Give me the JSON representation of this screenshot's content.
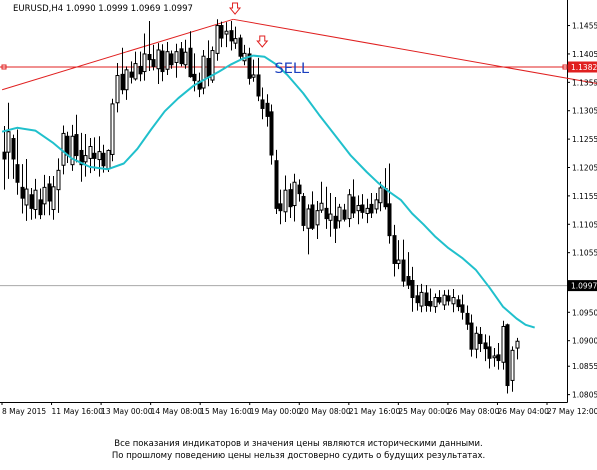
{
  "chart_data": {
    "type": "candlestick",
    "symbol_info": "EURUSD,H4  1.0990 1.0999 1.0969 1.0997",
    "colors": {
      "background": "#ffffff",
      "bull": "#ffffff",
      "bear": "#000000",
      "outline": "#000000",
      "moving_average": "#20c0cc",
      "trendline": "#e02020",
      "price_level": "#e02020",
      "current_price_line": "#a8a8a8",
      "sell_label": "#1a3fbf",
      "arrow": "#e02020"
    },
    "ylim": [
      1.0792,
      1.15
    ],
    "y_ticks": [
      "1.1455",
      "1.1405",
      "1.1355",
      "1.1305",
      "1.1255",
      "1.1205",
      "1.1155",
      "1.1105",
      "1.1055",
      "1.0950",
      "1.0900",
      "1.0855",
      "1.0805"
    ],
    "x_labels": [
      "8 May 2015",
      "11 May 16:00",
      "13 May 00:00",
      "14 May 08:00",
      "15 May 16:00",
      "19 May 00:00",
      "20 May 08:00",
      "21 May 16:00",
      "25 May 00:00",
      "26 May 08:00",
      "26 May 04:00",
      "27 May 12:00"
    ],
    "price_level": {
      "value": 1.1382,
      "label": "1.1382"
    },
    "current_price": {
      "value": 1.0997,
      "label": "1.0997"
    },
    "trendlines": [
      {
        "from_candle": -0.3,
        "from_price": 1.1342,
        "to_candle": 50.6,
        "to_price": 1.1466
      },
      {
        "from_candle": 50.6,
        "from_price": 1.1466,
        "to_candle": 133.5,
        "to_price": 1.1349
      }
    ],
    "sell_label": "SELL",
    "signal_arrows": [
      {
        "candle": 51,
        "price": 1.1477
      },
      {
        "candle": 57,
        "price": 1.1419
      }
    ],
    "candles": [
      {
        "o": 1.1232,
        "h": 1.1278,
        "l": 1.1166,
        "c": 1.122
      },
      {
        "o": 1.1232,
        "h": 1.1319,
        "l": 1.1185,
        "c": 1.1268
      },
      {
        "o": 1.1256,
        "h": 1.1263,
        "l": 1.1185,
        "c": 1.122
      },
      {
        "o": 1.121,
        "h": 1.1272,
        "l": 1.1157,
        "c": 1.1179
      },
      {
        "o": 1.117,
        "h": 1.1211,
        "l": 1.1124,
        "c": 1.1151
      },
      {
        "o": 1.1139,
        "h": 1.122,
        "l": 1.1111,
        "c": 1.1167
      },
      {
        "o": 1.1157,
        "h": 1.1169,
        "l": 1.1113,
        "c": 1.1133
      },
      {
        "o": 1.1131,
        "h": 1.1185,
        "l": 1.1115,
        "c": 1.1165
      },
      {
        "o": 1.1148,
        "h": 1.1168,
        "l": 1.1114,
        "c": 1.1122
      },
      {
        "o": 1.1141,
        "h": 1.1192,
        "l": 1.1121,
        "c": 1.117
      },
      {
        "o": 1.1176,
        "h": 1.119,
        "l": 1.1121,
        "c": 1.1146
      },
      {
        "o": 1.1131,
        "h": 1.119,
        "l": 1.1113,
        "c": 1.1171
      },
      {
        "o": 1.1166,
        "h": 1.1221,
        "l": 1.1125,
        "c": 1.12
      },
      {
        "o": 1.1209,
        "h": 1.1279,
        "l": 1.1193,
        "c": 1.1265
      },
      {
        "o": 1.126,
        "h": 1.1268,
        "l": 1.1213,
        "c": 1.1227
      },
      {
        "o": 1.121,
        "h": 1.128,
        "l": 1.1199,
        "c": 1.126
      },
      {
        "o": 1.1263,
        "h": 1.1298,
        "l": 1.1214,
        "c": 1.1226
      },
      {
        "o": 1.1235,
        "h": 1.1266,
        "l": 1.118,
        "c": 1.121
      },
      {
        "o": 1.1215,
        "h": 1.1264,
        "l": 1.1189,
        "c": 1.1226
      },
      {
        "o": 1.1221,
        "h": 1.1257,
        "l": 1.1195,
        "c": 1.1242
      },
      {
        "o": 1.123,
        "h": 1.1258,
        "l": 1.1199,
        "c": 1.1221
      },
      {
        "o": 1.1219,
        "h": 1.126,
        "l": 1.1189,
        "c": 1.1233
      },
      {
        "o": 1.123,
        "h": 1.1245,
        "l": 1.1196,
        "c": 1.1208
      },
      {
        "o": 1.1203,
        "h": 1.1237,
        "l": 1.1197,
        "c": 1.1235
      },
      {
        "o": 1.1228,
        "h": 1.1326,
        "l": 1.1216,
        "c": 1.1317
      },
      {
        "o": 1.1319,
        "h": 1.1389,
        "l": 1.1302,
        "c": 1.1367
      },
      {
        "o": 1.1369,
        "h": 1.1416,
        "l": 1.1334,
        "c": 1.1342
      },
      {
        "o": 1.1342,
        "h": 1.1383,
        "l": 1.1324,
        "c": 1.1377
      },
      {
        "o": 1.1373,
        "h": 1.1392,
        "l": 1.1353,
        "c": 1.1364
      },
      {
        "o": 1.1361,
        "h": 1.1409,
        "l": 1.1358,
        "c": 1.1388
      },
      {
        "o": 1.1383,
        "h": 1.1409,
        "l": 1.1357,
        "c": 1.137
      },
      {
        "o": 1.1374,
        "h": 1.1441,
        "l": 1.1358,
        "c": 1.1405
      },
      {
        "o": 1.1404,
        "h": 1.1463,
        "l": 1.1375,
        "c": 1.1395
      },
      {
        "o": 1.1395,
        "h": 1.1421,
        "l": 1.1376,
        "c": 1.1383
      },
      {
        "o": 1.1379,
        "h": 1.1424,
        "l": 1.1352,
        "c": 1.1412
      },
      {
        "o": 1.141,
        "h": 1.1422,
        "l": 1.1357,
        "c": 1.1374
      },
      {
        "o": 1.1378,
        "h": 1.1426,
        "l": 1.1368,
        "c": 1.1409
      },
      {
        "o": 1.1405,
        "h": 1.1411,
        "l": 1.1379,
        "c": 1.1386
      },
      {
        "o": 1.139,
        "h": 1.1423,
        "l": 1.1363,
        "c": 1.1409
      },
      {
        "o": 1.1414,
        "h": 1.1426,
        "l": 1.1383,
        "c": 1.1388
      },
      {
        "o": 1.1386,
        "h": 1.143,
        "l": 1.1379,
        "c": 1.1408
      },
      {
        "o": 1.1415,
        "h": 1.1445,
        "l": 1.1363,
        "c": 1.1365
      },
      {
        "o": 1.1369,
        "h": 1.1406,
        "l": 1.1339,
        "c": 1.1358
      },
      {
        "o": 1.1357,
        "h": 1.1372,
        "l": 1.1329,
        "c": 1.1343
      },
      {
        "o": 1.1345,
        "h": 1.1412,
        "l": 1.1334,
        "c": 1.1401
      },
      {
        "o": 1.1397,
        "h": 1.1429,
        "l": 1.1348,
        "c": 1.1364
      },
      {
        "o": 1.1359,
        "h": 1.1418,
        "l": 1.1354,
        "c": 1.1411
      },
      {
        "o": 1.1406,
        "h": 1.1466,
        "l": 1.1393,
        "c": 1.1455
      },
      {
        "o": 1.1455,
        "h": 1.1462,
        "l": 1.1417,
        "c": 1.1433
      },
      {
        "o": 1.144,
        "h": 1.1461,
        "l": 1.1417,
        "c": 1.1445
      },
      {
        "o": 1.1446,
        "h": 1.1463,
        "l": 1.1411,
        "c": 1.1428
      },
      {
        "o": 1.1424,
        "h": 1.1453,
        "l": 1.1414,
        "c": 1.1432
      },
      {
        "o": 1.1433,
        "h": 1.1439,
        "l": 1.1394,
        "c": 1.1401
      },
      {
        "o": 1.1393,
        "h": 1.1421,
        "l": 1.1385,
        "c": 1.1406
      },
      {
        "o": 1.1405,
        "h": 1.1416,
        "l": 1.1351,
        "c": 1.1362
      },
      {
        "o": 1.1364,
        "h": 1.1395,
        "l": 1.1356,
        "c": 1.1368
      },
      {
        "o": 1.1368,
        "h": 1.1398,
        "l": 1.1322,
        "c": 1.1331
      },
      {
        "o": 1.1324,
        "h": 1.1346,
        "l": 1.129,
        "c": 1.1309
      },
      {
        "o": 1.1318,
        "h": 1.1334,
        "l": 1.1277,
        "c": 1.1295
      },
      {
        "o": 1.1303,
        "h": 1.1316,
        "l": 1.121,
        "c": 1.1227
      },
      {
        "o": 1.1217,
        "h": 1.1236,
        "l": 1.1123,
        "c": 1.1133
      },
      {
        "o": 1.1141,
        "h": 1.1166,
        "l": 1.1105,
        "c": 1.1129
      },
      {
        "o": 1.1127,
        "h": 1.1191,
        "l": 1.1109,
        "c": 1.1165
      },
      {
        "o": 1.1166,
        "h": 1.1177,
        "l": 1.1116,
        "c": 1.1136
      },
      {
        "o": 1.1138,
        "h": 1.1194,
        "l": 1.111,
        "c": 1.1179
      },
      {
        "o": 1.1174,
        "h": 1.1184,
        "l": 1.1145,
        "c": 1.1159
      },
      {
        "o": 1.1154,
        "h": 1.116,
        "l": 1.1093,
        "c": 1.1103
      },
      {
        "o": 1.1098,
        "h": 1.114,
        "l": 1.1052,
        "c": 1.1132
      },
      {
        "o": 1.1139,
        "h": 1.1163,
        "l": 1.1095,
        "c": 1.1098
      },
      {
        "o": 1.1104,
        "h": 1.1146,
        "l": 1.1079,
        "c": 1.1129
      },
      {
        "o": 1.113,
        "h": 1.118,
        "l": 1.1125,
        "c": 1.1142
      },
      {
        "o": 1.1133,
        "h": 1.1171,
        "l": 1.1097,
        "c": 1.1115
      },
      {
        "o": 1.1112,
        "h": 1.116,
        "l": 1.1083,
        "c": 1.1123
      },
      {
        "o": 1.1119,
        "h": 1.1153,
        "l": 1.1072,
        "c": 1.1098
      },
      {
        "o": 1.1111,
        "h": 1.1141,
        "l": 1.1098,
        "c": 1.1135
      },
      {
        "o": 1.113,
        "h": 1.1141,
        "l": 1.111,
        "c": 1.1114
      },
      {
        "o": 1.1115,
        "h": 1.1167,
        "l": 1.11,
        "c": 1.1157
      },
      {
        "o": 1.1153,
        "h": 1.1184,
        "l": 1.1116,
        "c": 1.1125
      },
      {
        "o": 1.1129,
        "h": 1.1156,
        "l": 1.1105,
        "c": 1.1138
      },
      {
        "o": 1.1139,
        "h": 1.1158,
        "l": 1.1115,
        "c": 1.1126
      },
      {
        "o": 1.1124,
        "h": 1.115,
        "l": 1.1107,
        "c": 1.1133
      },
      {
        "o": 1.114,
        "h": 1.116,
        "l": 1.1116,
        "c": 1.1125
      },
      {
        "o": 1.1132,
        "h": 1.116,
        "l": 1.1124,
        "c": 1.1148
      },
      {
        "o": 1.1143,
        "h": 1.118,
        "l": 1.1128,
        "c": 1.1169
      },
      {
        "o": 1.1168,
        "h": 1.1204,
        "l": 1.1131,
        "c": 1.1136
      },
      {
        "o": 1.1141,
        "h": 1.1212,
        "l": 1.1071,
        "c": 1.1085
      },
      {
        "o": 1.1085,
        "h": 1.1104,
        "l": 1.1013,
        "c": 1.1036
      },
      {
        "o": 1.1036,
        "h": 1.1077,
        "l": 1.1026,
        "c": 1.1042
      },
      {
        "o": 1.1042,
        "h": 1.1078,
        "l": 1.0995,
        "c": 1.1005
      },
      {
        "o": 1.1013,
        "h": 1.1056,
        "l": 1.0991,
        "c": 1.0998
      },
      {
        "o": 1.1006,
        "h": 1.103,
        "l": 1.0951,
        "c": 1.0976
      },
      {
        "o": 1.0979,
        "h": 1.0998,
        "l": 1.0953,
        "c": 1.0967
      },
      {
        "o": 1.0961,
        "h": 1.1,
        "l": 1.095,
        "c": 1.0985
      },
      {
        "o": 1.0984,
        "h": 1.0998,
        "l": 1.0951,
        "c": 1.0962
      },
      {
        "o": 1.0969,
        "h": 1.0992,
        "l": 1.0951,
        "c": 1.0961
      },
      {
        "o": 1.096,
        "h": 1.0983,
        "l": 1.0949,
        "c": 1.0976
      },
      {
        "o": 1.0976,
        "h": 1.0989,
        "l": 1.0964,
        "c": 1.0968
      },
      {
        "o": 1.0963,
        "h": 1.0989,
        "l": 1.0954,
        "c": 1.098
      },
      {
        "o": 1.0979,
        "h": 1.099,
        "l": 1.0962,
        "c": 1.097
      },
      {
        "o": 1.0965,
        "h": 1.0991,
        "l": 1.095,
        "c": 1.0976
      },
      {
        "o": 1.0972,
        "h": 1.098,
        "l": 1.0952,
        "c": 1.096
      },
      {
        "o": 1.0963,
        "h": 1.0981,
        "l": 1.0937,
        "c": 1.095
      },
      {
        "o": 1.0948,
        "h": 1.0962,
        "l": 1.0919,
        "c": 1.0929
      },
      {
        "o": 1.0931,
        "h": 1.0946,
        "l": 1.0872,
        "c": 1.0885
      },
      {
        "o": 1.0885,
        "h": 1.0925,
        "l": 1.0869,
        "c": 1.0913
      },
      {
        "o": 1.0911,
        "h": 1.0924,
        "l": 1.088,
        "c": 1.0895
      },
      {
        "o": 1.0896,
        "h": 1.0911,
        "l": 1.0864,
        "c": 1.0886
      },
      {
        "o": 1.0889,
        "h": 1.0909,
        "l": 1.0851,
        "c": 1.0869
      },
      {
        "o": 1.087,
        "h": 1.0887,
        "l": 1.0854,
        "c": 1.0873
      },
      {
        "o": 1.0875,
        "h": 1.0896,
        "l": 1.0849,
        "c": 1.0865
      },
      {
        "o": 1.0862,
        "h": 1.0935,
        "l": 1.0849,
        "c": 1.0925
      },
      {
        "o": 1.0928,
        "h": 1.093,
        "l": 1.0807,
        "c": 1.0821
      },
      {
        "o": 1.083,
        "h": 1.089,
        "l": 1.081,
        "c": 1.0883
      },
      {
        "o": 1.0887,
        "h": 1.0905,
        "l": 1.0867,
        "c": 1.0899
      }
    ],
    "moving_average": [
      [
        -0.3,
        1.1268
      ],
      [
        3.0,
        1.1275
      ],
      [
        7.0,
        1.127
      ],
      [
        11.0,
        1.1248
      ],
      [
        15.0,
        1.1221
      ],
      [
        19.0,
        1.1206
      ],
      [
        23.0,
        1.1202
      ],
      [
        26.5,
        1.1212
      ],
      [
        29.5,
        1.1238
      ],
      [
        32.5,
        1.1272
      ],
      [
        35.5,
        1.1304
      ],
      [
        38.5,
        1.1327
      ],
      [
        42.0,
        1.135
      ],
      [
        45.0,
        1.1363
      ],
      [
        47.5,
        1.1374
      ],
      [
        50.0,
        1.1386
      ],
      [
        52.5,
        1.1396
      ],
      [
        55.0,
        1.1402
      ],
      [
        57.5,
        1.14
      ],
      [
        60.0,
        1.1387
      ],
      [
        62.5,
        1.1368
      ],
      [
        66.0,
        1.1336
      ],
      [
        69.5,
        1.1298
      ],
      [
        73.0,
        1.1262
      ],
      [
        76.5,
        1.1226
      ],
      [
        80.0,
        1.1197
      ],
      [
        82.5,
        1.1178
      ],
      [
        85.0,
        1.1162
      ],
      [
        87.5,
        1.1148
      ],
      [
        90.0,
        1.1124
      ],
      [
        92.5,
        1.1105
      ],
      [
        95.0,
        1.1084
      ],
      [
        98.0,
        1.1063
      ],
      [
        101.0,
        1.1046
      ],
      [
        104.0,
        1.1025
      ],
      [
        107.0,
        1.0994
      ],
      [
        110.0,
        1.096
      ],
      [
        113.0,
        1.0939
      ],
      [
        115.0,
        1.0928
      ],
      [
        117.0,
        1.0923
      ]
    ]
  },
  "footer": {
    "line1": "Все показания индикаторов и значения цены являются историческими данными.",
    "line2": "По прошлому поведению цены нельзя достоверно судить о будущих результатах."
  }
}
